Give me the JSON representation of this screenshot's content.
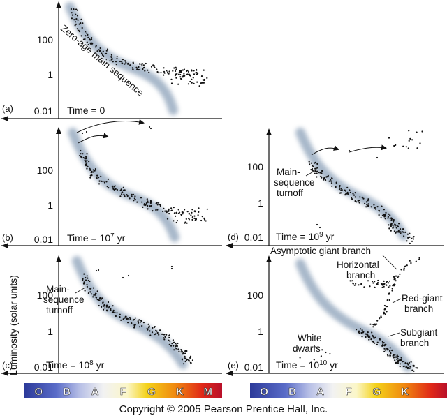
{
  "copyright": "Copyright © 2005 Pearson Prentice Hall, Inc.",
  "y_axis_label": "Luminosity (solar units)",
  "spectral_bars": [
    {
      "id": "left",
      "classes": [
        "O",
        "B",
        "A",
        "F",
        "G",
        "K",
        "M"
      ]
    },
    {
      "id": "right",
      "classes": [
        "O",
        "B",
        "A",
        "F",
        "G",
        "K"
      ]
    }
  ],
  "chart_data": [
    {
      "id": "a",
      "type": "scatter",
      "panel_label": "(a)",
      "time_label": "Time = 0",
      "ylim": [
        0.01,
        10000
      ],
      "yscale": "log",
      "yticks": [
        "100",
        "1",
        "0.01"
      ],
      "xaxis": "spectral class (hot to cool)",
      "annotations": [
        "Zero-age main sequence"
      ],
      "series": [
        {
          "x": [
            0.03,
            0.08,
            0.14,
            0.2,
            0.27,
            0.34,
            0.41,
            0.48,
            0.55,
            0.62,
            0.7,
            0.78,
            0.86,
            0.93
          ],
          "y": [
            1500,
            600,
            180,
            70,
            25,
            9,
            4,
            2.5,
            1.5,
            1.3,
            1.5,
            1.2,
            1.0,
            0.7
          ]
        }
      ]
    },
    {
      "id": "b",
      "type": "scatter",
      "panel_label": "(b)",
      "time_label": "Time = 10^7 yr",
      "ylim": [
        0.01,
        10000
      ],
      "yscale": "log",
      "yticks": [
        "100",
        "1",
        "0.01"
      ],
      "annotations": [],
      "series": [
        {
          "x": [
            0.1,
            0.15,
            0.22,
            0.3,
            0.38,
            0.46,
            0.54,
            0.62,
            0.7,
            0.78,
            0.85,
            0.92
          ],
          "y": [
            300,
            120,
            40,
            12,
            5,
            2.5,
            1.5,
            1.0,
            0.6,
            0.4,
            0.3,
            0.1
          ]
        }
      ]
    },
    {
      "id": "c",
      "type": "scatter",
      "panel_label": "(c)",
      "time_label": "Time = 10^8 yr",
      "ylim": [
        0.01,
        10000
      ],
      "yscale": "log",
      "yticks": [
        "100",
        "1",
        "0.01"
      ],
      "annotations": [
        "Main-sequence turnoff"
      ],
      "series": [
        {
          "x": [
            0.26,
            0.33,
            0.4,
            0.48,
            0.56,
            0.64,
            0.72,
            0.8,
            0.86
          ],
          "y": [
            350,
            80,
            20,
            6,
            2.5,
            1,
            0.3,
            0.08,
            0.02
          ]
        }
      ]
    },
    {
      "id": "d",
      "type": "scatter",
      "panel_label": "(d)",
      "time_label": "Time = 10^9 yr",
      "ylim": [
        0.01,
        10000
      ],
      "yscale": "log",
      "yticks": [
        "100",
        "1",
        "0.01"
      ],
      "annotations": [
        "Main-sequence turnoff"
      ],
      "series": [
        {
          "x": [
            0.4,
            0.47,
            0.54,
            0.62,
            0.7,
            0.78,
            0.84,
            0.9
          ],
          "y": [
            120,
            40,
            15,
            5,
            1.5,
            0.3,
            0.06,
            0.01
          ]
        }
      ]
    },
    {
      "id": "e",
      "type": "scatter",
      "panel_label": "(e)",
      "time_label": "Time = 10^10 yr",
      "ylim": [
        0.01,
        10000
      ],
      "yscale": "log",
      "yticks": [
        "100",
        "1",
        "0.01"
      ],
      "annotations": [
        "Asymptotic giant branch",
        "Horizontal branch",
        "Red-giant branch",
        "Subgiant branch",
        "White dwarfs"
      ],
      "series": [
        {
          "x": [
            0.62,
            0.68,
            0.74,
            0.8,
            0.86,
            0.9
          ],
          "y": [
            2,
            0.8,
            0.3,
            0.08,
            0.02,
            0.01
          ]
        }
      ]
    }
  ]
}
